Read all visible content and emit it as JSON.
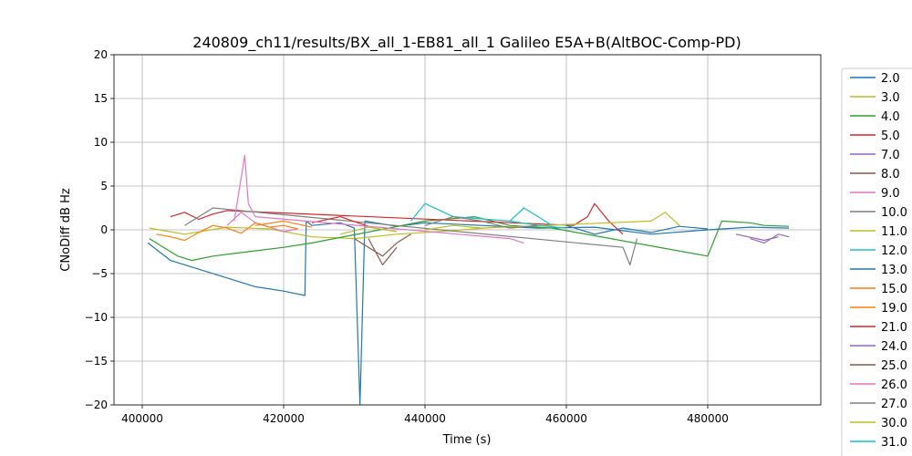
{
  "chart_data": {
    "type": "line",
    "title": "240809_ch11/results/BX_all_1-EB81_all_1 Galileo E5A+B(AltBOC-Comp-PD)",
    "xlabel": "Time (s)",
    "ylabel": "CNoDiff dB Hz",
    "xlim": [
      396000,
      496000
    ],
    "ylim": [
      -20,
      20
    ],
    "xticks": [
      400000,
      420000,
      440000,
      460000,
      480000
    ],
    "yticks": [
      -20,
      -15,
      -10,
      -5,
      0,
      5,
      10,
      15,
      20
    ],
    "grid": true,
    "legend_placement": "right-outside",
    "series": [
      {
        "name": "2.0",
        "color": "#1f77b4",
        "x": [
          400800,
          404000,
          408000,
          412000,
          416000,
          420000,
          423000,
          423200,
          424000,
          428000,
          430000,
          430800,
          431500,
          436000,
          440000,
          448000,
          456000,
          464000,
          472000,
          480000,
          486000,
          491500
        ],
        "y": [
          -1.5,
          -3.5,
          -4.5,
          -5.5,
          -6.5,
          -7,
          -7.5,
          1,
          0.5,
          0.8,
          0.2,
          -20,
          1,
          0.4,
          0.8,
          0.5,
          0.2,
          0.3,
          -0.5,
          0,
          0.3,
          0.2
        ]
      },
      {
        "name": "3.0",
        "color": "#bcbd22",
        "x": [
          401000,
          406000,
          412000,
          418000,
          424000,
          430000,
          436000,
          442000,
          450000
        ],
        "y": [
          0.2,
          -0.5,
          0.3,
          0.1,
          -0.8,
          -1,
          -0.5,
          -0.2,
          0.3
        ]
      },
      {
        "name": "4.0",
        "color": "#2ca02c",
        "x": [
          401000,
          403000,
          405000,
          407000,
          410000,
          415000,
          420000,
          424000,
          440000,
          447000,
          452000,
          458000,
          480000,
          482000,
          486000,
          488000,
          491500
        ],
        "y": [
          -1,
          -2,
          -3,
          -3.5,
          -3,
          -2.5,
          -2,
          -1.5,
          1,
          1.5,
          0.5,
          0.2,
          -3,
          1,
          0.8,
          0.5,
          0.4
        ]
      },
      {
        "name": "5.0",
        "color": "#d62728",
        "x": [
          404000,
          406000,
          408000,
          410000,
          412000,
          461000,
          463000,
          464000,
          466000,
          468000
        ],
        "y": [
          1.5,
          2,
          1.2,
          1.8,
          2.2,
          0.5,
          1.5,
          3,
          1,
          -0.5
        ]
      },
      {
        "name": "7.0",
        "color": "#9467bd",
        "x": [
          486000,
          488000,
          490000,
          491500
        ],
        "y": [
          -1,
          -1.5,
          -0.5,
          -0.8
        ]
      },
      {
        "name": "8.0",
        "color": "#8c564b",
        "x": [
          430000,
          432000,
          434000,
          436000,
          438000
        ],
        "y": [
          -1,
          -2,
          -3,
          -1.5,
          -0.5
        ]
      },
      {
        "name": "9.0",
        "color": "#e377c2",
        "x": [
          412000,
          414000,
          416000,
          418000,
          420000,
          422000
        ],
        "y": [
          0.5,
          2,
          0.8,
          0.3,
          -0.2,
          0.1
        ]
      },
      {
        "name": "10.0",
        "color": "#7f7f7f",
        "x": [
          406000,
          408000,
          410000,
          468000,
          469000,
          470000
        ],
        "y": [
          0.5,
          1.5,
          2.5,
          -2,
          -4,
          -1
        ]
      },
      {
        "name": "11.0",
        "color": "#bcbd22",
        "x": [
          440000,
          444000,
          448000,
          472000,
          474000,
          476000
        ],
        "y": [
          0,
          0.5,
          0.2,
          1,
          2,
          0.5
        ]
      },
      {
        "name": "12.0",
        "color": "#17becf",
        "x": [
          438000,
          440000,
          444000,
          452000,
          456000,
          460000
        ],
        "y": [
          1,
          3,
          1.5,
          1,
          0.5,
          0.2
        ]
      },
      {
        "name": "13.0",
        "color": "#1f77b4",
        "x": [
          460000,
          464000,
          468000,
          472000,
          476000,
          480000
        ],
        "y": [
          0.5,
          -0.5,
          0.2,
          -0.3,
          0.4,
          0.1
        ]
      },
      {
        "name": "15.0",
        "color": "#ff7f0e",
        "x": [
          402000,
          404000,
          406000,
          408000,
          410000,
          412000,
          414000,
          416000,
          418000,
          420000,
          422000
        ],
        "y": [
          -0.5,
          -0.8,
          -1.2,
          -0.3,
          0.5,
          0.2,
          -0.4,
          0.8,
          0.3,
          0.5,
          0.1
        ]
      },
      {
        "name": "19.0",
        "color": "#ff7f0e",
        "x": [
          416000,
          420000,
          424000
        ],
        "y": [
          0.5,
          1,
          0.3
        ]
      },
      {
        "name": "21.0",
        "color": "#d62728",
        "x": [
          424000,
          428000,
          432000
        ],
        "y": [
          0.8,
          1.5,
          0.4
        ]
      },
      {
        "name": "24.0",
        "color": "#9467bd",
        "x": [
          484000,
          488000,
          490000
        ],
        "y": [
          -0.5,
          -1.2,
          -0.8
        ]
      },
      {
        "name": "25.0",
        "color": "#8c564b",
        "x": [
          432000,
          434000,
          436000
        ],
        "y": [
          -1,
          -4,
          -2
        ]
      },
      {
        "name": "26.0",
        "color": "#e377c2",
        "x": [
          413000,
          414500,
          415000,
          416000,
          452000,
          454000
        ],
        "y": [
          1,
          8.5,
          3,
          1.5,
          -1,
          -1.5
        ]
      },
      {
        "name": "27.0",
        "color": "#7f7f7f",
        "x": [
          440000,
          444000,
          448000,
          452000,
          456000
        ],
        "y": [
          0.5,
          1.5,
          1,
          0.2,
          0.5
        ]
      },
      {
        "name": "30.0",
        "color": "#bcbd22",
        "x": [
          428000,
          432000,
          436000
        ],
        "y": [
          -0.5,
          0.3,
          -0.2
        ]
      },
      {
        "name": "31.0",
        "color": "#17becf",
        "x": [
          452000,
          454000,
          456000,
          458000
        ],
        "y": [
          1,
          2.5,
          1.5,
          0.5
        ]
      }
    ]
  }
}
